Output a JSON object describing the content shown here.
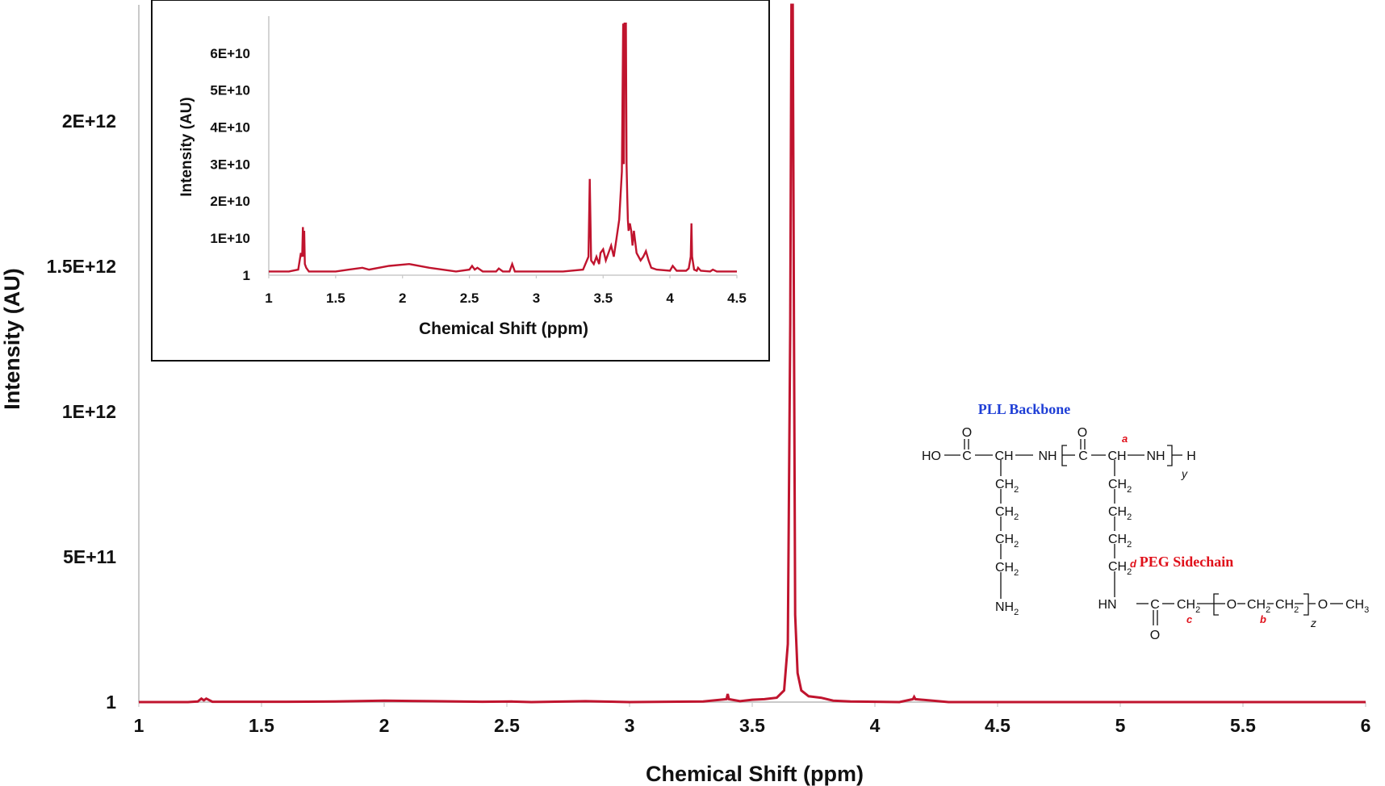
{
  "chart_data": [
    {
      "type": "line",
      "title": "",
      "xlabel": "Chemical Shift (ppm)",
      "ylabel": "Intensity (AU)",
      "xlim": [
        1,
        6
      ],
      "ylim": [
        0,
        2400000000000.0
      ],
      "x_ticks": [
        1,
        1.5,
        2,
        2.5,
        3,
        3.5,
        4,
        4.5,
        5,
        5.5,
        6
      ],
      "x_tick_labels": [
        "1",
        "1.5",
        "2",
        "2.5",
        "3",
        "3.5",
        "4",
        "4.5",
        "5",
        "5.5",
        "6"
      ],
      "y_ticks": [
        0,
        500000000000.0,
        1000000000000.0,
        1500000000000.0,
        2000000000000.0
      ],
      "y_tick_labels": [
        "1",
        "5E+11",
        "1E+12",
        "1.5E+12",
        "2E+12"
      ],
      "grid": false,
      "color": "#c0142e",
      "series": [
        {
          "x": [
            1.0,
            1.2,
            1.24,
            1.255,
            1.265,
            1.275,
            1.3,
            1.6,
            1.8,
            2.0,
            2.2,
            2.4,
            2.52,
            2.6,
            2.82,
            3.0,
            3.3,
            3.395,
            3.4,
            3.405,
            3.45,
            3.5,
            3.55,
            3.6,
            3.63,
            3.645,
            3.655,
            3.66,
            3.665,
            3.67,
            3.675,
            3.685,
            3.7,
            3.73,
            3.78,
            3.83,
            3.9,
            4.1,
            4.155,
            4.16,
            4.165,
            4.3,
            4.6,
            5.0,
            5.5,
            6.0
          ],
          "y": [
            0,
            0,
            2000000000.0,
            12000000000.0,
            6000000000.0,
            12000000000.0,
            1000000000.0,
            1000000000.0,
            2000000000.0,
            5000000000.0,
            3000000000.0,
            1000000000.0,
            2000000000.0,
            0,
            3000000000.0,
            0,
            2000000000.0,
            10000000000.0,
            28000000000.0,
            10000000000.0,
            3000000000.0,
            8000000000.0,
            10000000000.0,
            15000000000.0,
            40000000000.0,
            200000000000.0,
            1300000000000.0,
            2400000000000.0,
            2400000000000.0,
            1300000000000.0,
            300000000000.0,
            100000000000.0,
            40000000000.0,
            20000000000.0,
            15000000000.0,
            5000000000.0,
            2000000000.0,
            0,
            10000000000.0,
            18000000000.0,
            10000000000.0,
            0,
            0,
            0,
            0,
            0
          ]
        }
      ]
    },
    {
      "type": "line",
      "title": "",
      "xlabel": "Chemical Shift (ppm)",
      "ylabel": "Intensity (AU)",
      "xlim": [
        1,
        4.5
      ],
      "ylim": [
        0,
        70000000000.0
      ],
      "x_ticks": [
        1,
        1.5,
        2,
        2.5,
        3,
        3.5,
        4,
        4.5
      ],
      "x_tick_labels": [
        "1",
        "1.5",
        "2",
        "2.5",
        "3",
        "3.5",
        "4",
        "4.5"
      ],
      "y_ticks": [
        0,
        10000000000.0,
        20000000000.0,
        30000000000.0,
        40000000000.0,
        50000000000.0,
        60000000000.0
      ],
      "y_tick_labels": [
        "1",
        "1E+10",
        "2E+10",
        "3E+10",
        "4E+10",
        "5E+10",
        "6E+10"
      ],
      "grid": false,
      "color": "#c0142e",
      "series": [
        {
          "x": [
            1.0,
            1.15,
            1.22,
            1.24,
            1.25,
            1.255,
            1.26,
            1.265,
            1.27,
            1.28,
            1.3,
            1.5,
            1.6,
            1.7,
            1.75,
            1.9,
            2.05,
            2.2,
            2.4,
            2.5,
            2.52,
            2.54,
            2.56,
            2.6,
            2.7,
            2.72,
            2.75,
            2.8,
            2.82,
            2.84,
            3.0,
            3.2,
            3.35,
            3.39,
            3.4,
            3.41,
            3.43,
            3.45,
            3.47,
            3.48,
            3.5,
            3.52,
            3.54,
            3.56,
            3.58,
            3.6,
            3.62,
            3.64,
            3.65,
            3.655,
            3.66,
            3.665,
            3.67,
            3.675,
            3.68,
            3.685,
            3.69,
            3.7,
            3.71,
            3.72,
            3.73,
            3.75,
            3.78,
            3.8,
            3.82,
            3.84,
            3.86,
            3.9,
            4.0,
            4.02,
            4.05,
            4.12,
            4.14,
            4.155,
            4.16,
            4.165,
            4.18,
            4.2,
            4.21,
            4.23,
            4.3,
            4.32,
            4.35,
            4.5
          ],
          "y": [
            1000000000.0,
            1000000000.0,
            1500000000.0,
            6000000000.0,
            5000000000.0,
            13000000000.0,
            5000000000.0,
            12000000000.0,
            3000000000.0,
            2000000000.0,
            1000000000.0,
            1000000000.0,
            1500000000.0,
            2000000000.0,
            1500000000.0,
            2500000000.0,
            3000000000.0,
            2000000000.0,
            1000000000.0,
            1500000000.0,
            2500000000.0,
            1500000000.0,
            2000000000.0,
            1000000000.0,
            1000000000.0,
            1800000000.0,
            1000000000.0,
            1000000000.0,
            3000000000.0,
            1000000000.0,
            1000000000.0,
            1000000000.0,
            1500000000.0,
            5000000000.0,
            26000000000.0,
            4000000000.0,
            3000000000.0,
            5000000000.0,
            3000000000.0,
            6000000000.0,
            7000000000.0,
            4000000000.0,
            6000000000.0,
            8000000000.0,
            5000000000.0,
            10000000000.0,
            15000000000.0,
            28000000000.0,
            68000000000.0,
            30000000000.0,
            68000000000.0,
            68000000000.0,
            68000000000.0,
            30000000000.0,
            22000000000.0,
            15000000000.0,
            12000000000.0,
            14000000000.0,
            12000000000.0,
            8000000000.0,
            12000000000.0,
            6000000000.0,
            4000000000.0,
            5000000000.0,
            6500000000.0,
            4000000000.0,
            2000000000.0,
            1500000000.0,
            1200000000.0,
            2500000000.0,
            1200000000.0,
            1200000000.0,
            1800000000.0,
            5000000000.0,
            14000000000.0,
            5000000000.0,
            1500000000.0,
            1200000000.0,
            2000000000.0,
            1200000000.0,
            1000000000.0,
            1500000000.0,
            1000000000.0,
            1000000000.0
          ]
        }
      ]
    }
  ],
  "structure": {
    "title_backbone": "PLL Backbone",
    "title_sidechain": "PEG Sidechain",
    "ho": "HO",
    "o_top1": "O",
    "o_top2": "O",
    "c1": "C",
    "ch1": "CH",
    "nh1": "NH",
    "c2": "C",
    "ch2": "CH",
    "nh2": "NH",
    "h_end": "H",
    "sub_y": "y",
    "ch2_base": "CH",
    "sub_2": "2",
    "nh2_base": "NH",
    "hn": "HN",
    "c3": "C",
    "o_bottom": "O",
    "o_chain": "O",
    "o_end": "O",
    "ch3_base": "CH",
    "sub_3": "3",
    "sub_z": "z",
    "label_a": "a",
    "label_b": "b",
    "label_c": "c",
    "label_d": "d"
  }
}
